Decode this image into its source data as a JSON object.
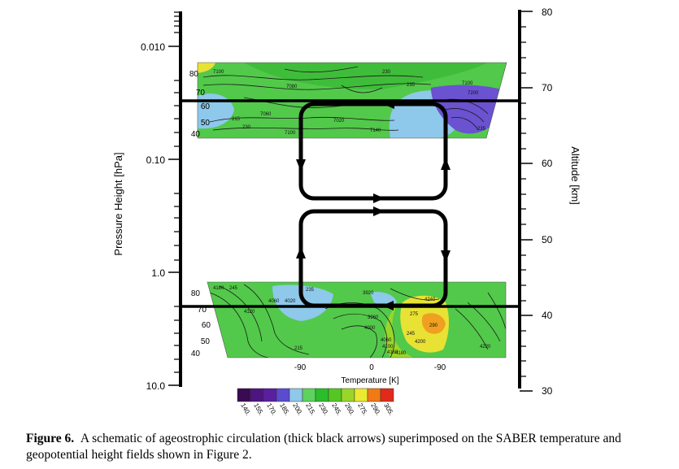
{
  "figure": {
    "left_axis": {
      "label": "Pressure Height [hPa]",
      "ticks": [
        "0.010",
        "0.10",
        "1.0",
        "10.0"
      ]
    },
    "right_axis": {
      "label": "Altitude [km]",
      "ticks": [
        "80",
        "70",
        "60",
        "50",
        "40",
        "30"
      ]
    },
    "upper_panel": {
      "lat_ticks": [
        "80",
        "70",
        "60",
        "50",
        "40"
      ],
      "contour_labels": [
        "7100",
        "7080",
        "7060",
        "7020",
        "7100",
        "7140",
        "7100",
        "7200",
        "235",
        "215",
        "230",
        "230",
        "235"
      ]
    },
    "lower_panel": {
      "lat_ticks": [
        "80",
        "70",
        "60",
        "50",
        "40"
      ],
      "lon_ticks": [
        "-90",
        "0",
        "-90"
      ],
      "x_label": "Temperature [K]",
      "contour_labels": [
        "4180",
        "245",
        "4120",
        "4060",
        "4020",
        "235",
        "3920",
        "3960",
        "4000",
        "4060",
        "4100",
        "4160",
        "4180",
        "215",
        "275",
        "245",
        "4200",
        "4240",
        "290",
        "4220"
      ]
    },
    "colorbar": {
      "ticks": [
        "140.",
        "155.",
        "170.",
        "185.",
        "200.",
        "215.",
        "230.",
        "245.",
        "260.",
        "275.",
        "290.",
        "305."
      ],
      "colors": [
        "#3a0a52",
        "#4e1480",
        "#5a1ea0",
        "#5a4bd0",
        "#8ec8ea",
        "#5ed25e",
        "#2bbd2b",
        "#56c722",
        "#9ad62a",
        "#ecea30",
        "#f07a14",
        "#e22a1a"
      ]
    },
    "colors": {
      "arrow": "#000000",
      "field_green": "#52c94a",
      "field_light_blue": "#8ec8ea",
      "field_purple": "#6a52d0",
      "field_yellow": "#e8e234",
      "field_orange": "#f0a020"
    }
  },
  "caption": {
    "label": "Figure 6.",
    "text": "A schematic of ageostrophic circulation (thick black arrows) superimposed on the SABER temperature and geopotential height fields shown in Figure 2."
  }
}
